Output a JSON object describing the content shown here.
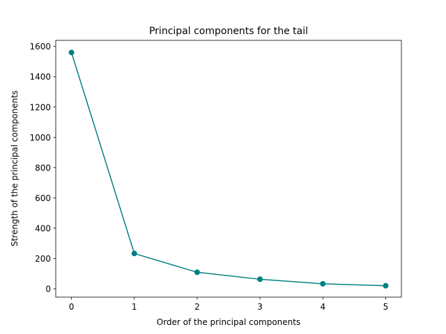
{
  "chart_data": {
    "type": "line",
    "title": "Principal components for the tail",
    "xlabel": "Order of the principal components",
    "ylabel": "Strength of the principal components",
    "x": [
      0,
      1,
      2,
      3,
      4,
      5
    ],
    "series": [
      {
        "values": [
          1560,
          233,
          109,
          63,
          33,
          20
        ],
        "color": "#008080",
        "marker": "circle"
      }
    ],
    "xlim": [
      -0.25,
      5.25
    ],
    "ylim": [
      -55,
      1640
    ],
    "xticks": [
      0,
      1,
      2,
      3,
      4,
      5
    ],
    "yticks": [
      0,
      200,
      400,
      600,
      800,
      1000,
      1200,
      1400,
      1600
    ],
    "grid": false,
    "legend": false
  }
}
